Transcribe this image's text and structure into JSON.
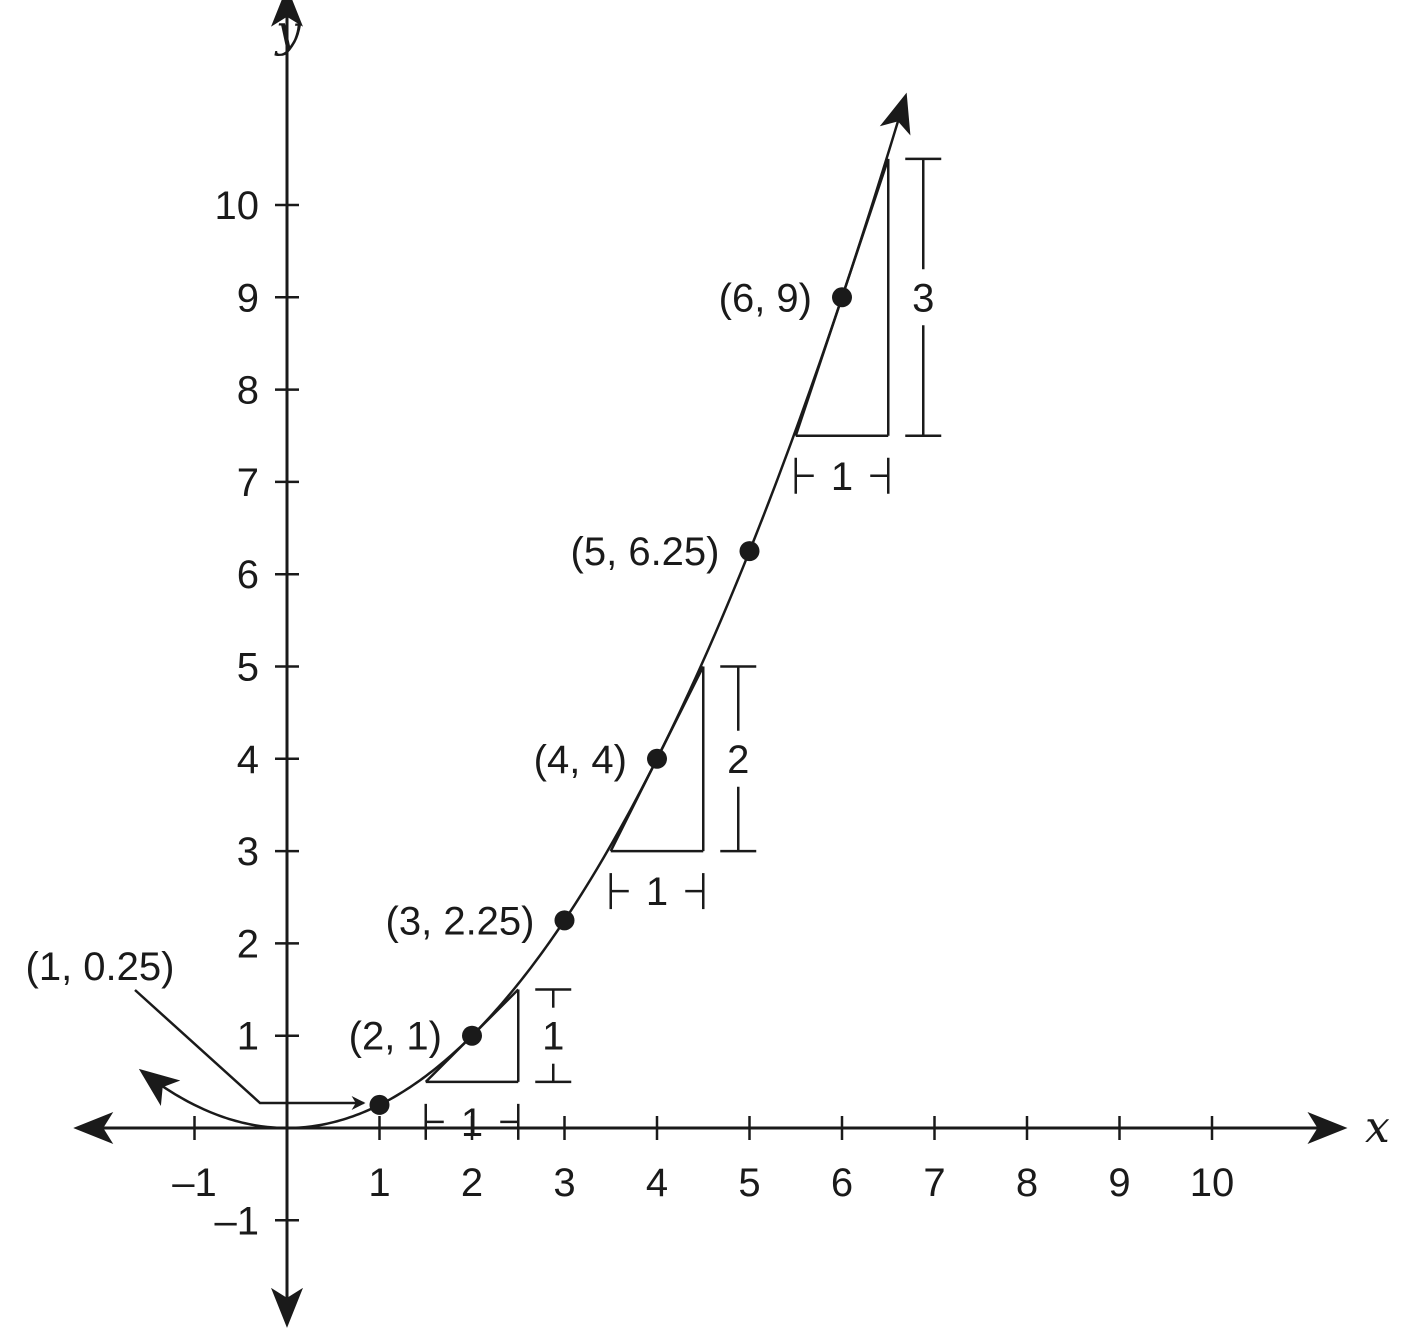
{
  "chart_data": {
    "type": "line",
    "title": "",
    "xlabel": "x",
    "ylabel": "y",
    "xlim": [
      -2.3,
      11.4
    ],
    "ylim": [
      -2.1,
      12.3
    ],
    "x_ticks": [
      -1,
      1,
      2,
      3,
      4,
      5,
      6,
      7,
      8,
      9,
      10
    ],
    "y_ticks": [
      -1,
      1,
      2,
      3,
      4,
      5,
      6,
      7,
      8,
      9,
      10
    ],
    "x_tick_labels": [
      "–1",
      "1",
      "2",
      "3",
      "4",
      "5",
      "6",
      "7",
      "8",
      "9",
      "10"
    ],
    "y_tick_labels": [
      "–1",
      "1",
      "2",
      "3",
      "4",
      "5",
      "6",
      "7",
      "8",
      "9",
      "10"
    ],
    "grid": false,
    "series": [
      {
        "function": "y = x^2 / 4",
        "x_range": [
          -1.55,
          6.68
        ]
      }
    ],
    "points": [
      {
        "x": 1,
        "y": 0.25,
        "label": "(1, 0.25)"
      },
      {
        "x": 2,
        "y": 1,
        "label": "(2, 1)"
      },
      {
        "x": 3,
        "y": 2.25,
        "label": "(3, 2.25)"
      },
      {
        "x": 4,
        "y": 4,
        "label": "(4, 4)"
      },
      {
        "x": 5,
        "y": 6.25,
        "label": "(5, 6.25)"
      },
      {
        "x": 6,
        "y": 9,
        "label": "(6, 9)"
      }
    ],
    "slope_triangles": [
      {
        "at_x": 2,
        "run": 1,
        "rise": 1,
        "run_label": "1",
        "rise_label": "1"
      },
      {
        "at_x": 4,
        "run": 1,
        "rise": 2,
        "run_label": "1",
        "rise_label": "2"
      },
      {
        "at_x": 6,
        "run": 1,
        "rise": 3,
        "run_label": "1",
        "rise_label": "3"
      }
    ]
  }
}
